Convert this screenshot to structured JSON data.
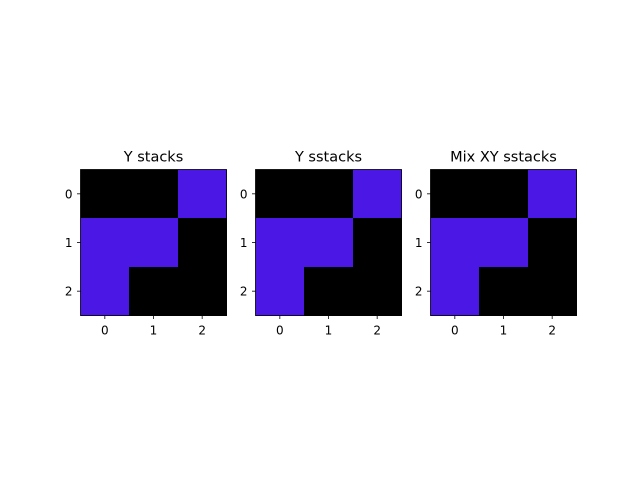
{
  "colors": {
    "on": "#4A17E5",
    "off": "#000000",
    "axis": "#000000",
    "background": "#ffffff"
  },
  "chart_data": [
    {
      "type": "heatmap",
      "title": "Y stacks",
      "xlabel": "",
      "ylabel": "",
      "x_ticks": [
        "0",
        "1",
        "2"
      ],
      "y_ticks": [
        "0",
        "1",
        "2"
      ],
      "grid": false,
      "values": [
        [
          0,
          0,
          1
        ],
        [
          1,
          1,
          0
        ],
        [
          1,
          0,
          0
        ]
      ]
    },
    {
      "type": "heatmap",
      "title": "Y sstacks",
      "xlabel": "",
      "ylabel": "",
      "x_ticks": [
        "0",
        "1",
        "2"
      ],
      "y_ticks": [
        "0",
        "1",
        "2"
      ],
      "grid": false,
      "values": [
        [
          0,
          0,
          1
        ],
        [
          1,
          1,
          0
        ],
        [
          1,
          0,
          0
        ]
      ]
    },
    {
      "type": "heatmap",
      "title": "Mix XY sstacks",
      "xlabel": "",
      "ylabel": "",
      "x_ticks": [
        "0",
        "1",
        "2"
      ],
      "y_ticks": [
        "0",
        "1",
        "2"
      ],
      "grid": false,
      "values": [
        [
          0,
          0,
          1
        ],
        [
          1,
          1,
          0
        ],
        [
          1,
          0,
          0
        ]
      ]
    }
  ]
}
